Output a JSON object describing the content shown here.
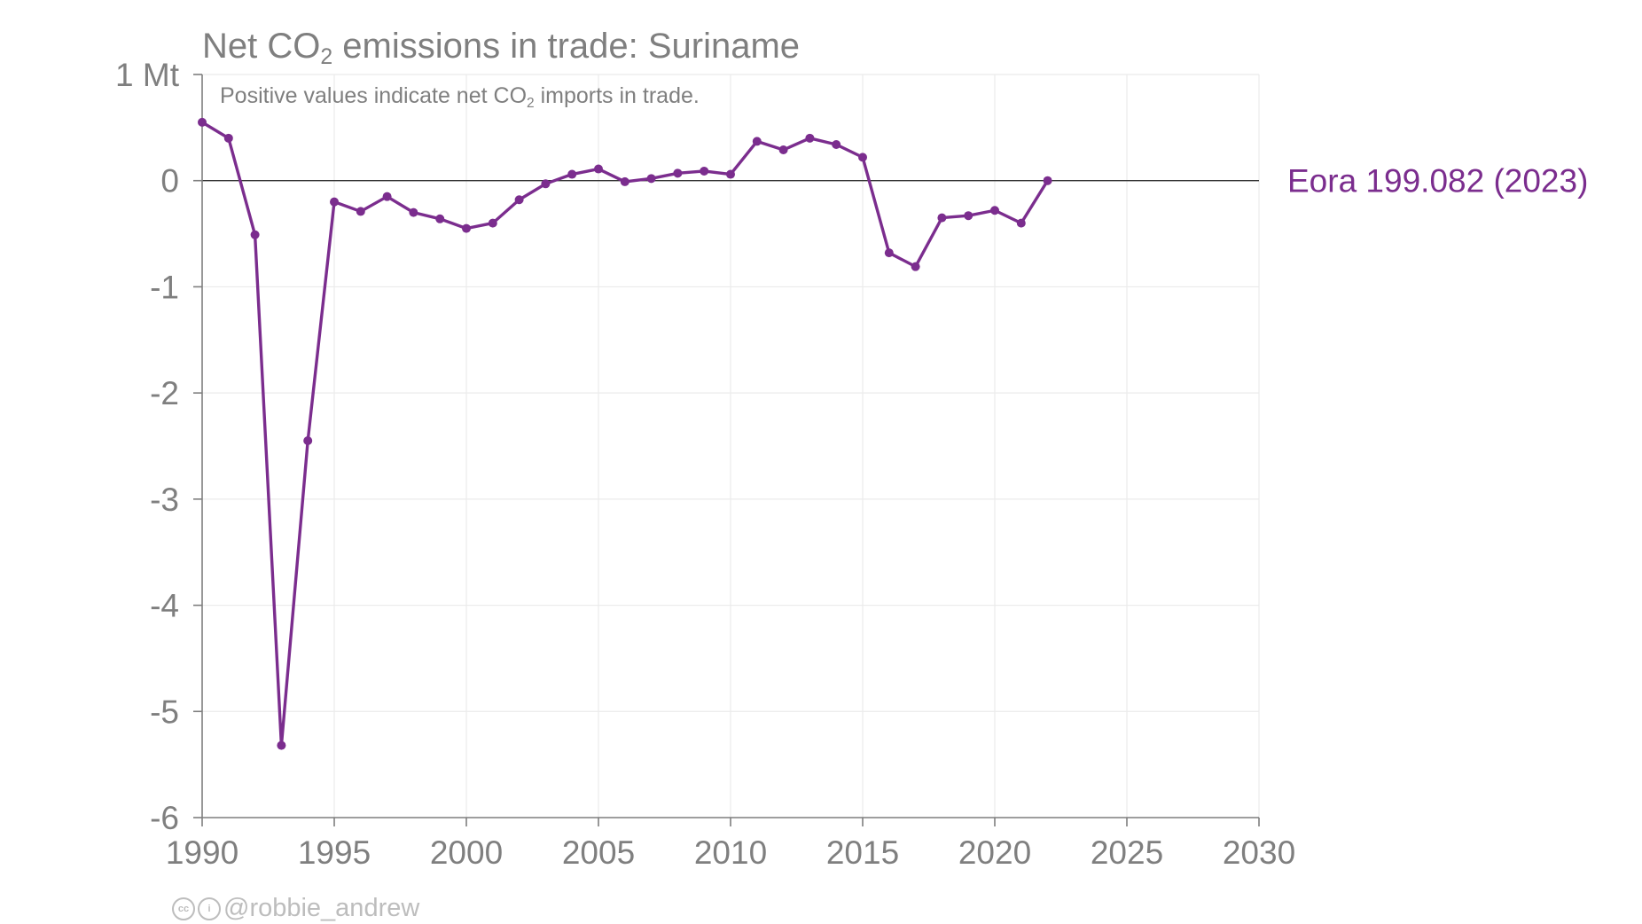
{
  "chart_data": {
    "type": "line",
    "title": {
      "prefix": "Net CO",
      "sub": "2",
      "suffix": " emissions in trade: Suriname"
    },
    "subtitle": {
      "prefix": "Positive values indicate net CO",
      "sub": "2",
      "suffix": " imports in trade."
    },
    "y_unit_label": "1 Mt",
    "xlim": [
      1990,
      2030
    ],
    "ylim": [
      -6,
      1
    ],
    "x_ticks": [
      1990,
      1995,
      2000,
      2005,
      2010,
      2015,
      2020,
      2025,
      2030
    ],
    "y_ticks": [
      {
        "value": 1,
        "label": "1 Mt"
      },
      {
        "value": 0,
        "label": "0"
      },
      {
        "value": -1,
        "label": "-1"
      },
      {
        "value": -2,
        "label": "-2"
      },
      {
        "value": -3,
        "label": "-3"
      },
      {
        "value": -4,
        "label": "-4"
      },
      {
        "value": -5,
        "label": "-5"
      },
      {
        "value": -6,
        "label": "-6"
      }
    ],
    "grid": true,
    "zero_line": true,
    "series": [
      {
        "name": "Eora 199.082 (2023)",
        "color": "#7b2d8e",
        "x": [
          1990,
          1991,
          1992,
          1993,
          1994,
          1995,
          1996,
          1997,
          1998,
          1999,
          2000,
          2001,
          2002,
          2003,
          2004,
          2005,
          2006,
          2007,
          2008,
          2009,
          2010,
          2011,
          2012,
          2013,
          2014,
          2015,
          2016,
          2017,
          2018,
          2019,
          2020,
          2021,
          2022
        ],
        "y": [
          0.55,
          0.4,
          -0.51,
          -5.32,
          -2.45,
          -0.2,
          -0.29,
          -0.15,
          -0.3,
          -0.36,
          -0.45,
          -0.4,
          -0.18,
          -0.03,
          0.06,
          0.11,
          -0.01,
          0.02,
          0.07,
          0.09,
          0.06,
          0.37,
          0.29,
          0.4,
          0.34,
          0.22,
          -0.68,
          -0.81,
          -0.35,
          -0.33,
          -0.28,
          -0.4,
          0.0
        ]
      }
    ],
    "credit": "@robbie_andrew"
  }
}
